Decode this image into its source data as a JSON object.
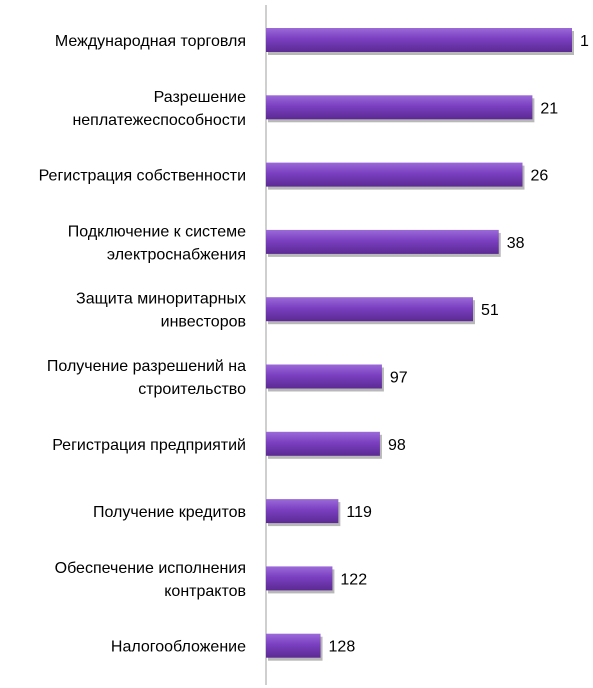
{
  "chart_data": {
    "type": "bar",
    "orientation": "horizontal",
    "categories": [
      "Международная торговля",
      "Разрешение неплатежеспособности",
      "Регистрация собственности",
      "Подключение к системе электроснабжения",
      "Защита миноритарных инвесторов",
      "Получение разрешений на строительство",
      "Регистрация предприятий",
      "Получение кредитов",
      "Обеспечение исполнения контрактов",
      "Налогообложение"
    ],
    "category_lines": [
      [
        "Международная торговля"
      ],
      [
        "Разрешение",
        "неплатежеспособности"
      ],
      [
        "Регистрация собственности"
      ],
      [
        "Подключение к системе",
        "электроснабжения"
      ],
      [
        "Защита миноритарных",
        "инвесторов"
      ],
      [
        "Получение разрешений на",
        "строительство"
      ],
      [
        "Регистрация предприятий"
      ],
      [
        "Получение кредитов"
      ],
      [
        "Обеспечение исполнения",
        "контрактов"
      ],
      [
        "Налогообложение"
      ]
    ],
    "values": [
      1,
      21,
      26,
      38,
      51,
      97,
      98,
      119,
      122,
      128
    ],
    "value_labels": [
      "1",
      "21",
      "26",
      "38",
      "51",
      "97",
      "98",
      "119",
      "122",
      "128"
    ],
    "scale": "bar length decreases as value increases (ranking)",
    "bar_color": "#7a3fc0",
    "bar_color_light": "#9b6ad8",
    "bar_color_dark": "#5b2a92",
    "axis_color": "#bfbfbf",
    "grid": false,
    "legend": "none",
    "title": "",
    "xlabel": "",
    "ylabel": ""
  }
}
